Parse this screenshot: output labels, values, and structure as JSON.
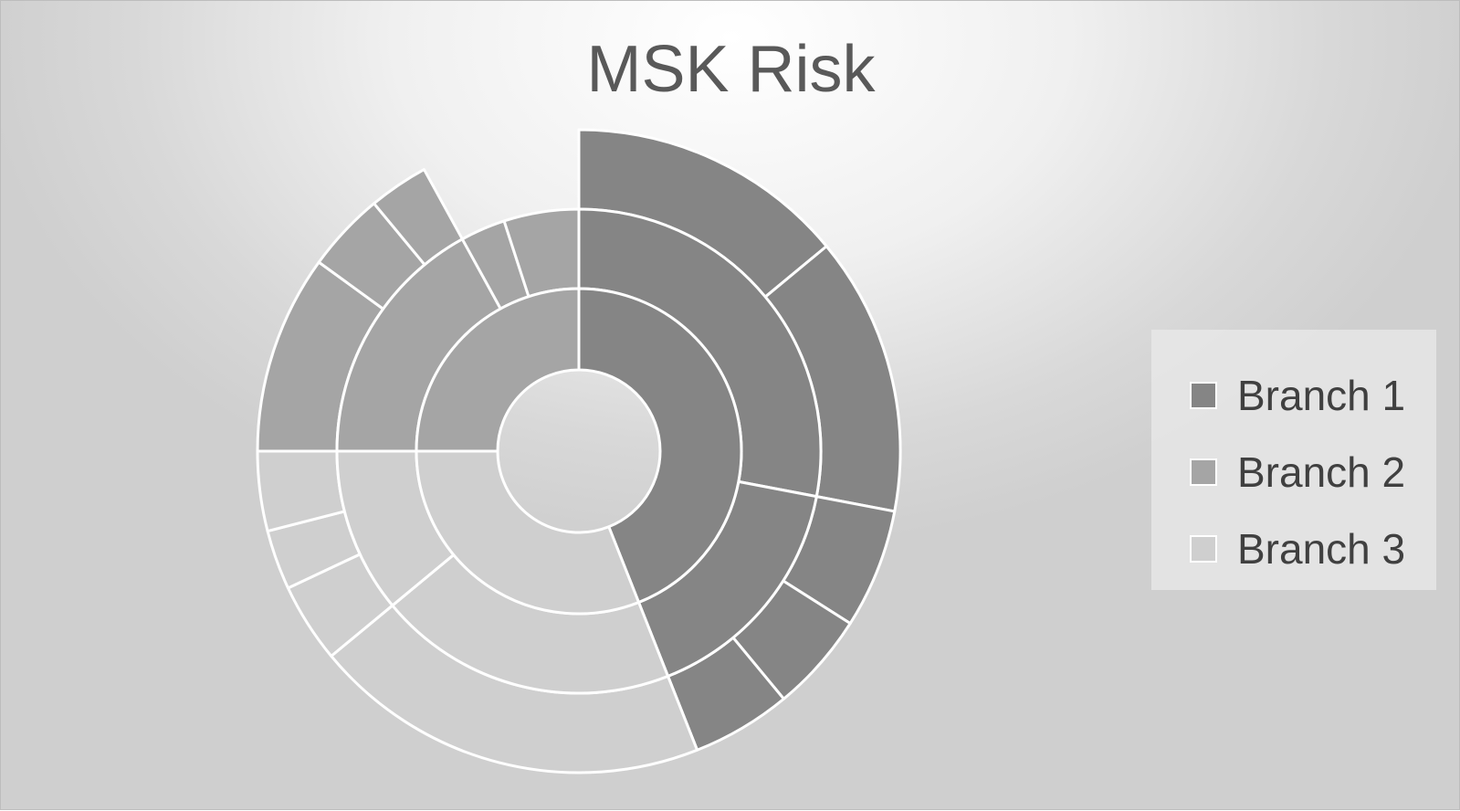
{
  "chart_data": {
    "type": "sunburst",
    "title": "MSK Risk",
    "legend_position": "right",
    "colors": {
      "Branch 1": "#858585",
      "Branch 2": "#a5a5a5",
      "Branch 3": "#cfcfcf",
      "separator": "#ffffff"
    },
    "start_angle_deg": 0,
    "branches": [
      {
        "name": "Branch 1",
        "value": 44,
        "children": [
          {
            "value": 28,
            "children": [
              {
                "value": 14
              },
              {
                "value": 14
              }
            ]
          },
          {
            "value": 16,
            "children": [
              {
                "value": 6
              },
              {
                "value": 5
              },
              {
                "value": 5
              }
            ]
          }
        ]
      },
      {
        "name": "Branch 3",
        "value": 31,
        "children": [
          {
            "value": 20,
            "children": [
              {
                "value": 20
              }
            ]
          },
          {
            "value": 11,
            "children": [
              {
                "value": 4
              },
              {
                "value": 3
              },
              {
                "value": 4
              }
            ]
          }
        ]
      },
      {
        "name": "Branch 2",
        "value": 25,
        "children": [
          {
            "value": 17,
            "children": [
              {
                "value": 10
              },
              {
                "value": 4
              },
              {
                "value": 3
              }
            ]
          },
          {
            "value": 3,
            "children": []
          },
          {
            "value": 5,
            "children": []
          }
        ]
      }
    ]
  },
  "legend": {
    "items": [
      {
        "label": "Branch 1",
        "color": "#858585"
      },
      {
        "label": "Branch 2",
        "color": "#a5a5a5"
      },
      {
        "label": "Branch 3",
        "color": "#cfcfcf"
      }
    ]
  }
}
